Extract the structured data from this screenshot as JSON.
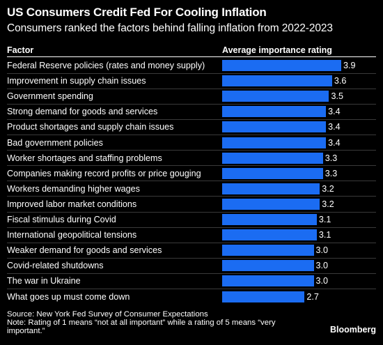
{
  "header": {
    "title": "US Consumers Credit Fed For Cooling Inflation",
    "subtitle": "Consumers ranked the factors behind falling inflation from 2022-2023"
  },
  "columns": {
    "factor": "Factor",
    "rating": "Average importance rating"
  },
  "chart_data": {
    "type": "bar",
    "orientation": "horizontal",
    "categories": [
      "Federal Reserve policies (rates and money supply)",
      "Improvement in supply chain issues",
      "Government spending",
      "Strong demand for goods and services",
      "Product shortages and supply chain issues",
      "Bad government policies",
      "Worker shortages and staffing problems",
      "Companies making record profits or price gouging",
      "Workers demanding higher wages",
      "Improved labor market conditions",
      "Fiscal stimulus during Covid",
      "International geopolitical tensions",
      "Weaker demand for goods and services",
      "Covid-related shutdowns",
      "The war in Ukraine",
      "What goes up must come down"
    ],
    "values": [
      3.9,
      3.6,
      3.5,
      3.4,
      3.4,
      3.4,
      3.3,
      3.3,
      3.2,
      3.2,
      3.1,
      3.1,
      3.0,
      3.0,
      3.0,
      2.7
    ],
    "value_labels": [
      "3.9",
      "3.6",
      "3.5",
      "3.4",
      "3.4",
      "3.4",
      "3.3",
      "3.3",
      "3.2",
      "3.2",
      "3.1",
      "3.1",
      "3.0",
      "3.0",
      "3.0",
      "2.7"
    ],
    "xlim": [
      0,
      3.9
    ],
    "bar_color": "#1b6cf2",
    "grid": false,
    "legend": "none"
  },
  "footer": {
    "source": "Source: New York Fed Survey of Consumer Expectations",
    "note": "Note: Rating of 1 means “not at all important” while a rating of 5 means “very important.”",
    "brand": "Bloomberg"
  }
}
